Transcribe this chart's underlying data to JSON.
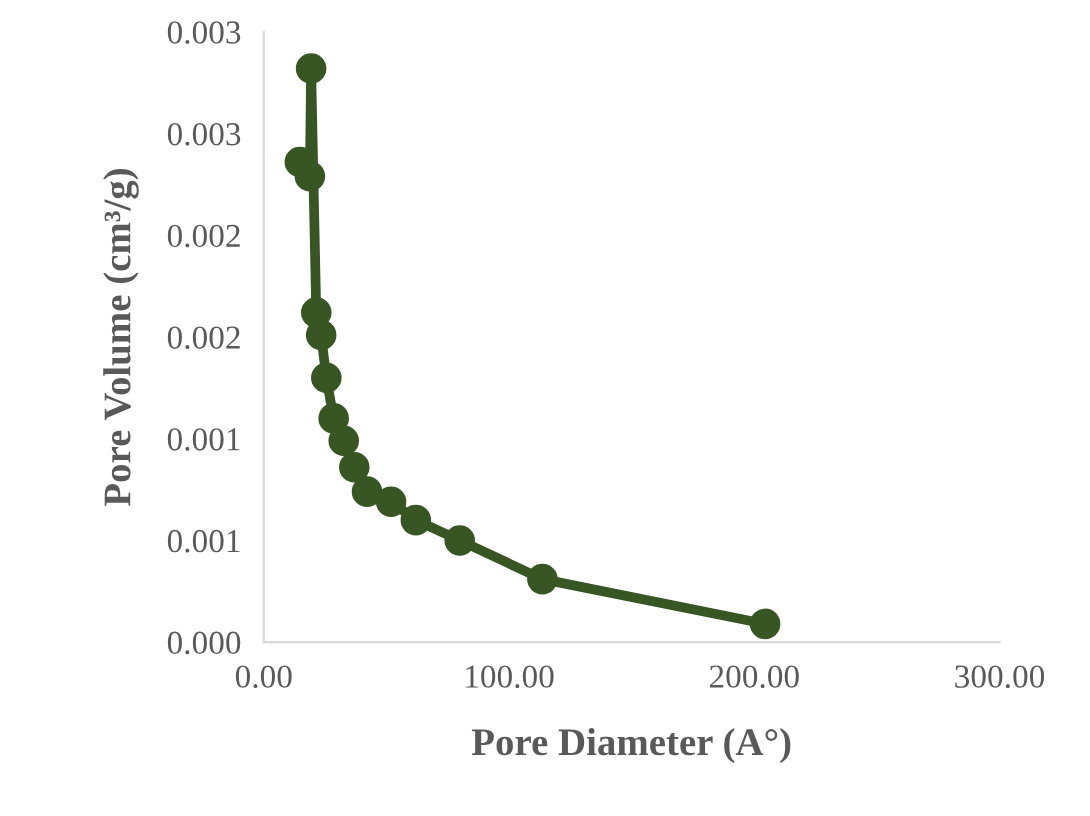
{
  "chart_data": {
    "type": "line",
    "xlabel": "Pore Diameter (A°)",
    "ylabel": "Pore Volume (cm³/g)",
    "series": [
      {
        "color": "#375623",
        "x": [
          14.7,
          18.8,
          19.3,
          21.4,
          23.4,
          25.5,
          28.5,
          32.6,
          36.9,
          42.1,
          51.9,
          62.0,
          79.9,
          113.6,
          204.4
        ],
        "values": [
          0.00236,
          0.00229,
          0.00282,
          0.00162,
          0.00151,
          0.0013,
          0.0011,
          0.00099,
          0.00086,
          0.00074,
          0.00069,
          0.0006,
          0.0005,
          0.00031,
          9e-05
        ]
      }
    ],
    "marker": "circle",
    "line_style": "solid",
    "grid": false,
    "legend": false,
    "xlim": [
      0,
      300
    ],
    "xticks": [
      {
        "value": 0,
        "label": "0.00"
      },
      {
        "value": 100,
        "label": "100.00"
      },
      {
        "value": 200,
        "label": "200.00"
      },
      {
        "value": 300,
        "label": "300.00"
      }
    ],
    "ylim": [
      0,
      0.003
    ],
    "yticks": [
      {
        "value": 0,
        "label": "0.000"
      },
      {
        "value": 0.0005,
        "label": "0.001"
      },
      {
        "value": 0.001,
        "label": "0.001"
      },
      {
        "value": 0.0015,
        "label": "0.002"
      },
      {
        "value": 0.002,
        "label": "0.002"
      },
      {
        "value": 0.0025,
        "label": "0.003"
      },
      {
        "value": 0.003,
        "label": "0.003"
      }
    ]
  }
}
